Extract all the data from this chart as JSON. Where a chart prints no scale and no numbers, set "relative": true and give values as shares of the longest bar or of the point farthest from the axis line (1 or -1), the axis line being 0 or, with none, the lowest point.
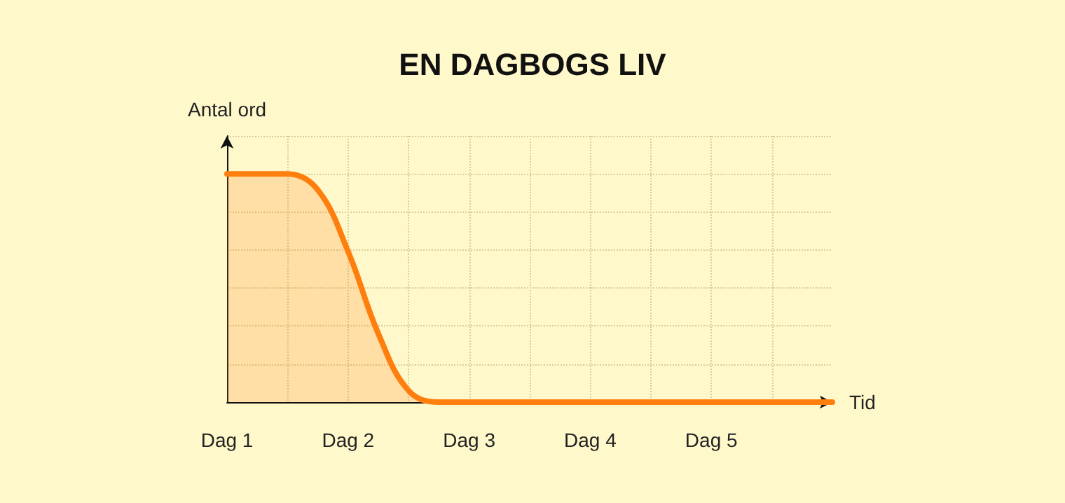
{
  "chart_data": {
    "type": "area",
    "title": "EN DAGBOGS LIV",
    "xlabel": "Tid",
    "ylabel": "Antal ord",
    "relative": true,
    "categories": [
      "Dag 1",
      null,
      null,
      null,
      "Dag 2",
      null,
      null,
      null,
      "Dag 3",
      null,
      null,
      null,
      "Dag 4",
      null,
      null,
      null,
      "Dag 5",
      null,
      null,
      null,
      null
    ],
    "series": [
      {
        "color": "#ff7f0e",
        "values": [
          1,
          1,
          1,
          0.93,
          0.66,
          0.3,
          0.05,
          0,
          0,
          0,
          0,
          0,
          0,
          0,
          0,
          0,
          0,
          0,
          0,
          0,
          0
        ]
      }
    ],
    "grid": true,
    "marker": "none",
    "line_style": "solid"
  }
}
